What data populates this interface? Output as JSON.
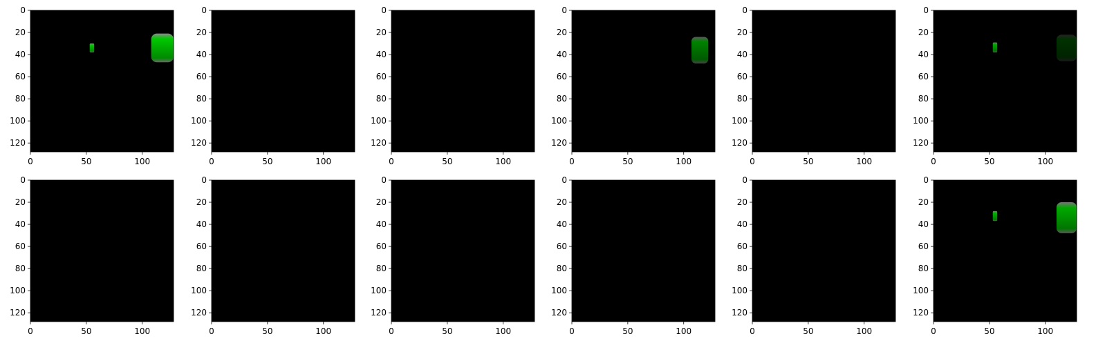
{
  "figure": {
    "layout": "2 rows x 6 image panels",
    "background_color": "#ffffff",
    "image_background_color": "#000000",
    "object_color": "#00c800",
    "object_edge_color": "#8a8a8a"
  },
  "chart_data": [
    {
      "type": "heatmap",
      "panel": "row1-col1",
      "content": "two green objects",
      "xlim": [
        0,
        128
      ],
      "ylim": [
        128,
        0
      ],
      "xticks": [
        0,
        50,
        100
      ],
      "yticks": [
        0,
        20,
        40,
        60,
        80,
        100,
        120
      ],
      "objects": [
        {
          "kind": "small block",
          "x": [
            53,
            57
          ],
          "y": [
            30,
            38
          ],
          "intensity": 1.0
        },
        {
          "kind": "large blob",
          "x": [
            108,
            128
          ],
          "y": [
            21,
            47
          ],
          "intensity": 1.0
        }
      ]
    },
    {
      "type": "heatmap",
      "panel": "row1-col2",
      "content": "empty (black)",
      "xlim": [
        0,
        128
      ],
      "ylim": [
        128,
        0
      ],
      "xticks": [
        0,
        50,
        100
      ],
      "yticks": [
        0,
        20,
        40,
        60,
        80,
        100,
        120
      ],
      "objects": []
    },
    {
      "type": "heatmap",
      "panel": "row1-col3",
      "content": "empty (black)",
      "xlim": [
        0,
        128
      ],
      "ylim": [
        128,
        0
      ],
      "xticks": [
        0,
        50,
        100
      ],
      "yticks": [
        0,
        20,
        40,
        60,
        80,
        100,
        120
      ],
      "objects": []
    },
    {
      "type": "heatmap",
      "panel": "row1-col4",
      "content": "one green object",
      "xlim": [
        0,
        128
      ],
      "ylim": [
        128,
        0
      ],
      "xticks": [
        0,
        50,
        100
      ],
      "yticks": [
        0,
        20,
        40,
        60,
        80,
        100,
        120
      ],
      "objects": [
        {
          "kind": "medium blob",
          "x": [
            107,
            122
          ],
          "y": [
            24,
            48
          ],
          "intensity": 0.65
        }
      ]
    },
    {
      "type": "heatmap",
      "panel": "row1-col5",
      "content": "empty (black)",
      "xlim": [
        0,
        128
      ],
      "ylim": [
        128,
        0
      ],
      "xticks": [
        0,
        50,
        100
      ],
      "yticks": [
        0,
        20,
        40,
        60,
        80,
        100,
        120
      ],
      "objects": []
    },
    {
      "type": "heatmap",
      "panel": "row1-col6",
      "content": "two faint green objects",
      "xlim": [
        0,
        128
      ],
      "ylim": [
        128,
        0
      ],
      "xticks": [
        0,
        50,
        100
      ],
      "yticks": [
        0,
        20,
        40,
        60,
        80,
        100,
        120
      ],
      "objects": [
        {
          "kind": "small block",
          "x": [
            53,
            57
          ],
          "y": [
            29,
            38
          ],
          "intensity": 0.85
        },
        {
          "kind": "faint blob",
          "x": [
            110,
            128
          ],
          "y": [
            22,
            46
          ],
          "intensity": 0.25
        }
      ]
    },
    {
      "type": "heatmap",
      "panel": "row2-col1",
      "content": "empty (black)",
      "xlim": [
        0,
        128
      ],
      "ylim": [
        128,
        0
      ],
      "xticks": [
        0,
        50,
        100
      ],
      "yticks": [
        0,
        20,
        40,
        60,
        80,
        100,
        120
      ],
      "objects": []
    },
    {
      "type": "heatmap",
      "panel": "row2-col2",
      "content": "empty (black)",
      "xlim": [
        0,
        128
      ],
      "ylim": [
        128,
        0
      ],
      "xticks": [
        0,
        50,
        100
      ],
      "yticks": [
        0,
        20,
        40,
        60,
        80,
        100,
        120
      ],
      "objects": []
    },
    {
      "type": "heatmap",
      "panel": "row2-col3",
      "content": "empty (black)",
      "xlim": [
        0,
        128
      ],
      "ylim": [
        128,
        0
      ],
      "xticks": [
        0,
        50,
        100
      ],
      "yticks": [
        0,
        20,
        40,
        60,
        80,
        100,
        120
      ],
      "objects": []
    },
    {
      "type": "heatmap",
      "panel": "row2-col4",
      "content": "empty (black)",
      "xlim": [
        0,
        128
      ],
      "ylim": [
        128,
        0
      ],
      "xticks": [
        0,
        50,
        100
      ],
      "yticks": [
        0,
        20,
        40,
        60,
        80,
        100,
        120
      ],
      "objects": []
    },
    {
      "type": "heatmap",
      "panel": "row2-col5",
      "content": "empty (black)",
      "xlim": [
        0,
        128
      ],
      "ylim": [
        128,
        0
      ],
      "xticks": [
        0,
        50,
        100
      ],
      "yticks": [
        0,
        20,
        40,
        60,
        80,
        100,
        120
      ],
      "objects": []
    },
    {
      "type": "heatmap",
      "panel": "row2-col6",
      "content": "two green objects",
      "xlim": [
        0,
        128
      ],
      "ylim": [
        128,
        0
      ],
      "xticks": [
        0,
        50,
        100
      ],
      "yticks": [
        0,
        20,
        40,
        60,
        80,
        100,
        120
      ],
      "objects": [
        {
          "kind": "small block",
          "x": [
            53,
            57
          ],
          "y": [
            28,
            37
          ],
          "intensity": 0.9
        },
        {
          "kind": "large blob",
          "x": [
            110,
            128
          ],
          "y": [
            20,
            48
          ],
          "intensity": 0.85
        }
      ]
    }
  ]
}
